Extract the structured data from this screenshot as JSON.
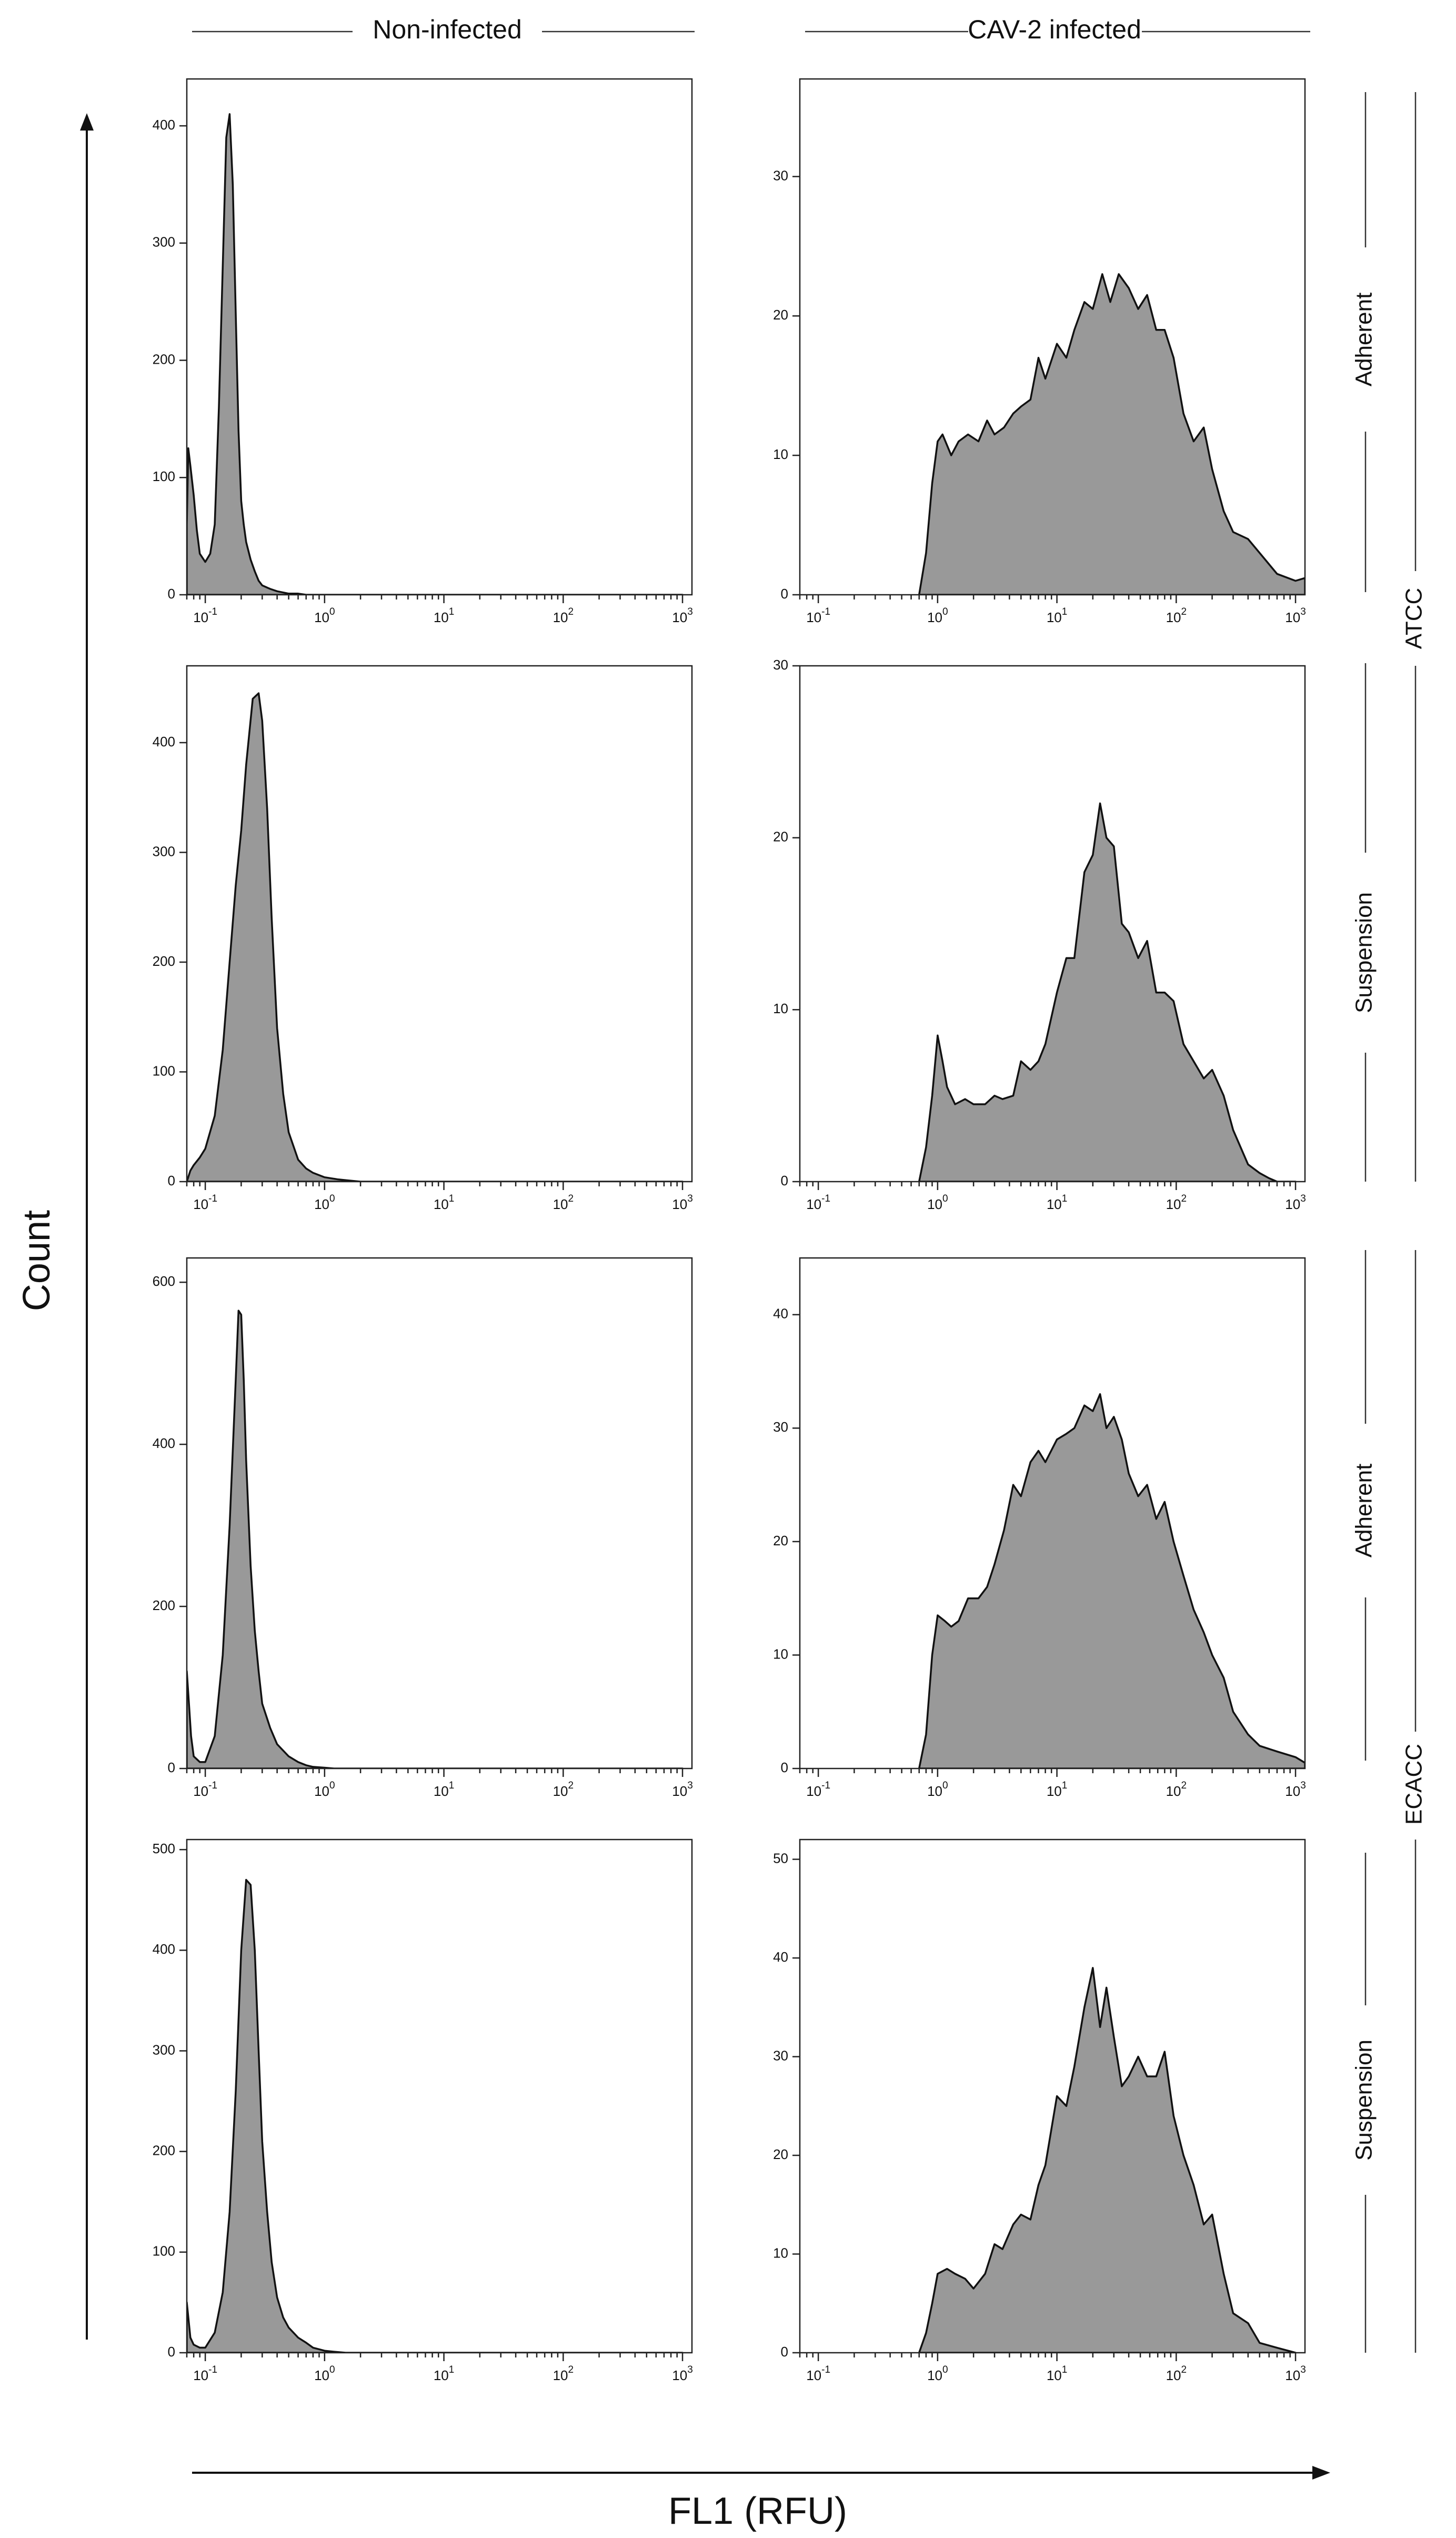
{
  "figure": {
    "column_titles": [
      "Non-infected",
      "CAV-2 infected"
    ],
    "row_labels": [
      "Adherent",
      "Suspension",
      "Adherent",
      "Suspension"
    ],
    "group_labels": [
      "ATCC",
      "ECACC"
    ],
    "x_axis_title": "FL1 (RFU)",
    "y_axis_title": "Count",
    "fill_color": "#999999",
    "line_color": "#111111"
  },
  "chart_data": [
    {
      "type": "area",
      "row": 0,
      "col": 0,
      "xscale": "log",
      "xlim": [
        0.07,
        1200
      ],
      "ylim": [
        0,
        440
      ],
      "xticks": [
        0.1,
        1,
        10,
        100,
        1000
      ],
      "yticks": [
        0,
        100,
        200,
        300,
        400
      ],
      "x": [
        0.07,
        0.072,
        0.075,
        0.08,
        0.085,
        0.09,
        0.1,
        0.11,
        0.12,
        0.13,
        0.14,
        0.15,
        0.16,
        0.17,
        0.18,
        0.19,
        0.2,
        0.21,
        0.22,
        0.24,
        0.26,
        0.28,
        0.3,
        0.35,
        0.4,
        0.5,
        0.6,
        0.7,
        0.8,
        1.0,
        1.2,
        1000
      ],
      "y": [
        60,
        125,
        110,
        85,
        55,
        35,
        28,
        35,
        60,
        160,
        280,
        390,
        410,
        350,
        240,
        140,
        80,
        60,
        45,
        30,
        20,
        12,
        8,
        5,
        3,
        1,
        1,
        0,
        0,
        0,
        0,
        0
      ]
    },
    {
      "type": "area",
      "row": 0,
      "col": 1,
      "xscale": "log",
      "xlim": [
        0.07,
        1200
      ],
      "ylim": [
        0,
        37
      ],
      "xticks": [
        0.1,
        1,
        10,
        100,
        1000
      ],
      "yticks": [
        0,
        10,
        20,
        30
      ],
      "x": [
        0.7,
        0.8,
        0.9,
        1.0,
        1.1,
        1.3,
        1.5,
        1.8,
        2.2,
        2.6,
        3.0,
        3.6,
        4.3,
        5.0,
        6.0,
        7.0,
        8.0,
        10,
        12,
        14,
        17,
        20,
        24,
        28,
        33,
        40,
        48,
        57,
        68,
        80,
        95,
        115,
        140,
        170,
        200,
        250,
        300,
        400,
        500,
        700,
        1000,
        1200
      ],
      "y": [
        0,
        3,
        8,
        11,
        11.5,
        10,
        11,
        11.5,
        11,
        12.5,
        11.5,
        12,
        13,
        13.5,
        14,
        17,
        15.5,
        18,
        17,
        19,
        21,
        20.5,
        23,
        21,
        23,
        22,
        20.5,
        21.5,
        19,
        19,
        17,
        13,
        11,
        12,
        9,
        6,
        4.5,
        4,
        3,
        1.5,
        1,
        1.2
      ]
    },
    {
      "type": "area",
      "row": 1,
      "col": 0,
      "xscale": "log",
      "xlim": [
        0.07,
        1200
      ],
      "ylim": [
        0,
        470
      ],
      "xticks": [
        0.1,
        1,
        10,
        100,
        1000
      ],
      "yticks": [
        0,
        100,
        200,
        300,
        400
      ],
      "x": [
        0.07,
        0.075,
        0.08,
        0.09,
        0.1,
        0.12,
        0.14,
        0.16,
        0.18,
        0.2,
        0.22,
        0.25,
        0.28,
        0.3,
        0.33,
        0.36,
        0.4,
        0.45,
        0.5,
        0.6,
        0.7,
        0.8,
        1.0,
        1.3,
        1.6,
        2.0,
        1000
      ],
      "y": [
        0,
        10,
        15,
        22,
        30,
        60,
        120,
        200,
        270,
        320,
        380,
        440,
        445,
        420,
        340,
        240,
        140,
        80,
        45,
        20,
        12,
        8,
        4,
        2,
        1,
        0,
        0
      ]
    },
    {
      "type": "area",
      "row": 1,
      "col": 1,
      "xscale": "log",
      "xlim": [
        0.07,
        1200
      ],
      "ylim": [
        0,
        30
      ],
      "xticks": [
        0.1,
        1,
        10,
        100,
        1000
      ],
      "yticks": [
        0,
        10,
        20,
        30
      ],
      "x": [
        0.7,
        0.8,
        0.9,
        1.0,
        1.1,
        1.2,
        1.4,
        1.7,
        2.0,
        2.5,
        3.0,
        3.5,
        4.3,
        5.0,
        6.0,
        7.0,
        8.0,
        10,
        12,
        14,
        17,
        20,
        23,
        26,
        30,
        35,
        40,
        48,
        57,
        68,
        80,
        95,
        115,
        140,
        170,
        200,
        250,
        300,
        400,
        500,
        600,
        700,
        1000
      ],
      "y": [
        0,
        2,
        5,
        8.5,
        7,
        5.5,
        4.5,
        4.8,
        4.5,
        4.5,
        5,
        4.8,
        5,
        7,
        6.5,
        7,
        8,
        11,
        13,
        13,
        18,
        19,
        22,
        20,
        19.5,
        15,
        14.5,
        13,
        14,
        11,
        11,
        10.5,
        8,
        7,
        6,
        6.5,
        5,
        3,
        1,
        0.5,
        0.2,
        0,
        0
      ]
    },
    {
      "type": "area",
      "row": 2,
      "col": 0,
      "xscale": "log",
      "xlim": [
        0.07,
        1200
      ],
      "ylim": [
        0,
        630
      ],
      "xticks": [
        0.1,
        1,
        10,
        100,
        1000
      ],
      "yticks": [
        0,
        200,
        400,
        600
      ],
      "x": [
        0.07,
        0.073,
        0.076,
        0.08,
        0.09,
        0.1,
        0.12,
        0.14,
        0.16,
        0.18,
        0.19,
        0.2,
        0.21,
        0.22,
        0.24,
        0.26,
        0.28,
        0.3,
        0.35,
        0.4,
        0.5,
        0.6,
        0.7,
        0.8,
        1.0,
        1.2,
        1000
      ],
      "y": [
        120,
        80,
        40,
        15,
        8,
        8,
        40,
        140,
        300,
        480,
        565,
        560,
        480,
        380,
        250,
        170,
        120,
        80,
        50,
        30,
        15,
        8,
        4,
        2,
        1,
        0,
        0
      ]
    },
    {
      "type": "area",
      "row": 2,
      "col": 1,
      "xscale": "log",
      "xlim": [
        0.07,
        1200
      ],
      "ylim": [
        0,
        45
      ],
      "xticks": [
        0.1,
        1,
        10,
        100,
        1000
      ],
      "yticks": [
        0,
        10,
        20,
        30,
        40
      ],
      "x": [
        0.7,
        0.8,
        0.9,
        1.0,
        1.15,
        1.3,
        1.5,
        1.8,
        2.2,
        2.6,
        3.0,
        3.6,
        4.3,
        5.0,
        6.0,
        7.0,
        8.0,
        10,
        12,
        14,
        17,
        20,
        23,
        26,
        30,
        35,
        40,
        48,
        57,
        68,
        80,
        95,
        115,
        140,
        170,
        200,
        250,
        300,
        400,
        500,
        700,
        1000,
        1200
      ],
      "y": [
        0,
        3,
        10,
        13.5,
        13,
        12.5,
        13,
        15,
        15,
        16,
        18,
        21,
        25,
        24,
        27,
        28,
        27,
        29,
        29.5,
        30,
        32,
        31.5,
        33,
        30,
        31,
        29,
        26,
        24,
        25,
        22,
        23.5,
        20,
        17,
        14,
        12,
        10,
        8,
        5,
        3,
        2,
        1.5,
        1,
        0.5
      ]
    },
    {
      "type": "area",
      "row": 3,
      "col": 0,
      "xscale": "log",
      "xlim": [
        0.07,
        1200
      ],
      "ylim": [
        0,
        510
      ],
      "xticks": [
        0.1,
        1,
        10,
        100,
        1000
      ],
      "yticks": [
        0,
        100,
        200,
        300,
        400,
        500
      ],
      "x": [
        0.07,
        0.075,
        0.08,
        0.09,
        0.1,
        0.12,
        0.14,
        0.16,
        0.18,
        0.2,
        0.22,
        0.24,
        0.26,
        0.28,
        0.3,
        0.33,
        0.36,
        0.4,
        0.45,
        0.5,
        0.6,
        0.7,
        0.8,
        1.0,
        1.2,
        1.5,
        1000
      ],
      "y": [
        50,
        15,
        8,
        5,
        5,
        20,
        60,
        140,
        260,
        400,
        470,
        465,
        400,
        300,
        210,
        140,
        90,
        55,
        35,
        25,
        15,
        10,
        5,
        2,
        1,
        0,
        0
      ]
    },
    {
      "type": "area",
      "row": 3,
      "col": 1,
      "xscale": "log",
      "xlim": [
        0.07,
        1200
      ],
      "ylim": [
        0,
        52
      ],
      "xticks": [
        0.1,
        1,
        10,
        100,
        1000
      ],
      "yticks": [
        0,
        10,
        20,
        30,
        40,
        50
      ],
      "x": [
        0.7,
        0.8,
        0.9,
        1.0,
        1.2,
        1.4,
        1.7,
        2.0,
        2.5,
        3.0,
        3.5,
        4.3,
        5.0,
        6.0,
        7.0,
        8.0,
        10,
        12,
        14,
        17,
        20,
        23,
        26,
        30,
        35,
        40,
        48,
        57,
        68,
        80,
        95,
        115,
        140,
        170,
        200,
        250,
        300,
        400,
        500,
        700,
        1000
      ],
      "y": [
        0,
        2,
        5,
        8,
        8.5,
        8,
        7.5,
        6.5,
        8,
        11,
        10.5,
        13,
        14,
        13.5,
        17,
        19,
        26,
        25,
        29,
        35,
        39,
        33,
        37,
        32,
        27,
        28,
        30,
        28,
        28,
        30.5,
        24,
        20,
        17,
        13,
        14,
        8,
        4,
        3,
        1,
        0.5,
        0
      ]
    }
  ]
}
